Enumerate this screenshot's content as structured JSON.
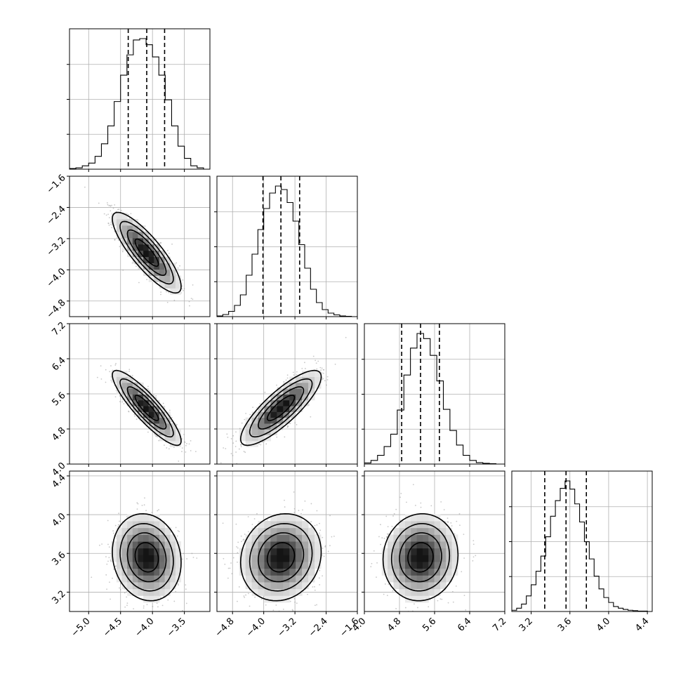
{
  "chart_data": {
    "type": "corner",
    "parameters": 4,
    "grid": true,
    "colors": {
      "frame": "#000000",
      "grid": "#b0b0b0",
      "points": "#9a9a9a",
      "density_dark": "#000000"
    },
    "axes": [
      {
        "range": [
          -5.3,
          -3.1
        ],
        "ticks": [
          {
            "v": -5.0,
            "label": "−5.0"
          },
          {
            "v": -4.5,
            "label": "−4.5"
          },
          {
            "v": -4.0,
            "label": "−4.0"
          },
          {
            "v": -3.5,
            "label": "−3.5"
          }
        ]
      },
      {
        "range": [
          -5.2,
          -1.6
        ],
        "ticks": [
          {
            "v": -4.8,
            "label": "−4.8"
          },
          {
            "v": -4.0,
            "label": "−4.0"
          },
          {
            "v": -3.2,
            "label": "−3.2"
          },
          {
            "v": -2.4,
            "label": "−2.4"
          },
          {
            "v": -1.6,
            "label": "−1.6"
          }
        ]
      },
      {
        "range": [
          4.0,
          7.2
        ],
        "ticks": [
          {
            "v": 4.0,
            "label": "4.0"
          },
          {
            "v": 4.8,
            "label": "4.8"
          },
          {
            "v": 5.6,
            "label": "5.6"
          },
          {
            "v": 6.4,
            "label": "6.4"
          },
          {
            "v": 7.2,
            "label": "7.2"
          }
        ]
      },
      {
        "range": [
          3.0,
          4.45
        ],
        "ticks": [
          {
            "v": 3.2,
            "label": "3.2"
          },
          {
            "v": 3.6,
            "label": "3.6"
          },
          {
            "v": 4.0,
            "label": "4.0"
          },
          {
            "v": 4.4,
            "label": "4.4"
          }
        ]
      }
    ],
    "marginals": [
      {
        "quantiles": [
          -4.38,
          -4.09,
          -3.81
        ],
        "bins": [
          -5.3,
          -5.2,
          -5.1,
          -5.0,
          -4.9,
          -4.8,
          -4.7,
          -4.6,
          -4.5,
          -4.4,
          -4.3,
          -4.2,
          -4.1,
          -4.0,
          -3.9,
          -3.8,
          -3.7,
          -3.6,
          -3.5,
          -3.4,
          -3.3,
          -3.2
        ],
        "counts": [
          2,
          4,
          10,
          18,
          38,
          75,
          128,
          200,
          278,
          338,
          382,
          386,
          368,
          332,
          278,
          205,
          128,
          68,
          32,
          10,
          4
        ]
      },
      {
        "quantiles": [
          -4.02,
          -3.56,
          -3.08
        ],
        "bins": [
          -5.2,
          -5.05,
          -4.9,
          -4.75,
          -4.6,
          -4.45,
          -4.3,
          -4.15,
          -4.0,
          -3.85,
          -3.7,
          -3.55,
          -3.4,
          -3.25,
          -3.1,
          -2.95,
          -2.8,
          -2.65,
          -2.5,
          -2.35,
          -2.2,
          -2.05,
          -1.9,
          -1.75
        ],
        "counts": [
          2,
          6,
          15,
          32,
          62,
          118,
          178,
          248,
          308,
          352,
          372,
          362,
          325,
          272,
          205,
          138,
          78,
          40,
          20,
          10,
          5,
          2,
          1
        ]
      },
      {
        "quantiles": [
          4.85,
          5.28,
          5.71
        ],
        "bins": [
          4.0,
          4.15,
          4.3,
          4.45,
          4.6,
          4.75,
          4.9,
          5.05,
          5.2,
          5.35,
          5.5,
          5.65,
          5.8,
          5.95,
          6.1,
          6.25,
          6.4,
          6.55,
          6.7,
          6.85,
          7.0
        ],
        "counts": [
          3,
          10,
          24,
          48,
          82,
          148,
          244,
          318,
          358,
          344,
          298,
          228,
          150,
          92,
          52,
          24,
          10,
          4,
          2,
          1
        ]
      },
      {
        "quantiles": [
          3.34,
          3.56,
          3.77
        ],
        "bins": [
          3.0,
          3.05,
          3.1,
          3.15,
          3.2,
          3.25,
          3.3,
          3.35,
          3.4,
          3.45,
          3.5,
          3.55,
          3.6,
          3.65,
          3.7,
          3.75,
          3.8,
          3.85,
          3.9,
          3.95,
          4.0,
          4.05,
          4.1,
          4.15,
          4.2,
          4.25,
          4.3,
          4.35,
          4.4
        ],
        "counts": [
          3,
          8,
          18,
          38,
          65,
          98,
          135,
          182,
          232,
          270,
          300,
          318,
          298,
          262,
          218,
          170,
          128,
          86,
          55,
          34,
          22,
          12,
          8,
          5,
          3,
          2,
          1,
          1
        ]
      }
    ],
    "pairs": [
      {
        "x": 0,
        "y": 1,
        "mean": [
          -4.09,
          -3.56
        ],
        "sd": [
          0.24,
          0.46
        ],
        "rho": -0.84
      },
      {
        "x": 0,
        "y": 2,
        "mean": [
          -4.09,
          5.28
        ],
        "sd": [
          0.24,
          0.38
        ],
        "rho": -0.88
      },
      {
        "x": 1,
        "y": 2,
        "mean": [
          -3.56,
          5.28
        ],
        "sd": [
          0.46,
          0.38
        ],
        "rho": 0.83
      },
      {
        "x": 0,
        "y": 3,
        "mean": [
          -4.09,
          3.56
        ],
        "sd": [
          0.24,
          0.2
        ],
        "rho": -0.12
      },
      {
        "x": 1,
        "y": 3,
        "mean": [
          -3.56,
          3.56
        ],
        "sd": [
          0.46,
          0.2
        ],
        "rho": 0.12
      },
      {
        "x": 2,
        "y": 3,
        "mean": [
          5.28,
          3.56
        ],
        "sd": [
          0.38,
          0.2
        ],
        "rho": 0.05
      }
    ]
  }
}
